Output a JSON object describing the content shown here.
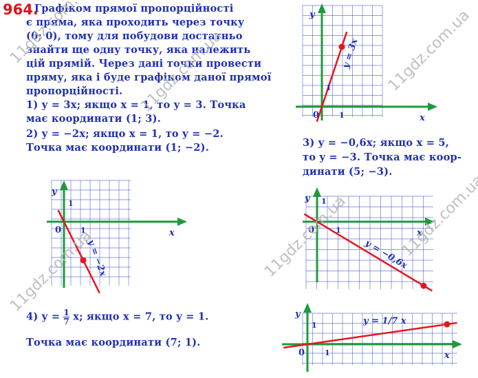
{
  "problem_number": "964.",
  "intro_lines": [
    "Графіком прямої пропорційності",
    "є пряма, яка проходить через точку",
    "(0; 0), тому для побудови достатньо",
    "знайти ще одну точку, яка належить",
    "цій прямій. Через дані точки провести",
    "пряму, яка і буде графіком даної прямої",
    "пропорційності."
  ],
  "case1": [
    "1) y = 3x; якщо x = 1, то y = 3. Точка",
    "має координати (1; 3)."
  ],
  "case2": [
    "2) y = −2x; якщо x = 1, то y = −2.",
    "Точка має координати (1; −2)."
  ],
  "case3": [
    "3) y = −0,6x; якщо x = 5,",
    "то y = −3. Точка має коор-",
    "динати (5; −3)."
  ],
  "case4": {
    "prefix": "4) y =",
    "num": "1",
    "den": "7",
    "suffix": "x;  якщо x = 7, то y = 1.",
    "line2": "Точка має координати (7; 1)."
  },
  "watermark": "11gdz.com.ua",
  "colors": {
    "text": "#1f2fb4",
    "number": "#e0141e",
    "grid": "#3a4fd0",
    "axis": "#1f9a3a",
    "line": "#e8141e"
  },
  "graphs": [
    {
      "slope": 3,
      "point": [
        1,
        3
      ],
      "label": "y = 3x",
      "x_label": "x",
      "y_label": "y",
      "origin_label": "0",
      "tick": "1"
    },
    {
      "slope": -2,
      "point": [
        1,
        -2
      ],
      "label": "y = −2x",
      "x_label": "x",
      "y_label": "y",
      "origin_label": "0",
      "tick": "1"
    },
    {
      "slope": -0.6,
      "point": [
        5,
        -3
      ],
      "label": "y = −0,6x",
      "x_label": "x",
      "y_label": "y",
      "origin_label": "0",
      "tick": "1"
    },
    {
      "slope": 0.142857,
      "point": [
        7,
        1
      ],
      "label": "y = 1/7 x",
      "x_label": "x",
      "y_label": "y",
      "origin_label": "0",
      "tick": "1"
    }
  ]
}
